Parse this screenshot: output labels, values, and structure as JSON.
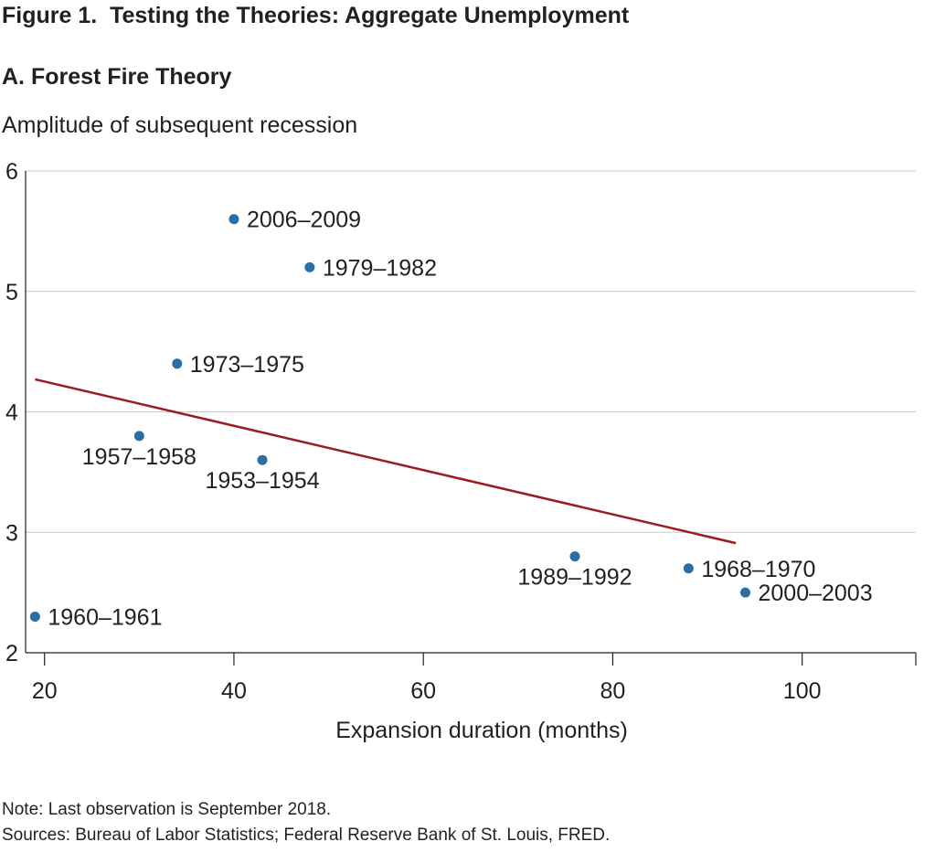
{
  "figure_title": "Figure 1.  Testing the Theories: Aggregate Unemployment",
  "panel_title": "A. Forest Fire Theory",
  "note": "Note: Last observation is September 2018.",
  "sources": "Sources: Bureau of Labor Statistics; Federal Reserve Bank of St. Louis, FRED.",
  "colors": {
    "point": "#2a6ea6",
    "trend": "#9b1c1f",
    "grid": "#c8c8c8",
    "axis": "#231f20"
  },
  "chart_data": {
    "type": "scatter",
    "title": "A. Forest Fire Theory",
    "xlabel": "Expansion duration (months)",
    "ylabel": "Amplitude of subsequent recession",
    "xlim": [
      18,
      112
    ],
    "ylim": [
      2,
      6
    ],
    "x_ticks": [
      20,
      40,
      60,
      80,
      100
    ],
    "y_ticks": [
      2,
      3,
      4,
      5,
      6
    ],
    "grid": "horizontal",
    "points": [
      {
        "label": "2006–2009",
        "x": 40,
        "y": 5.6,
        "label_side": "right"
      },
      {
        "label": "1979–1982",
        "x": 48,
        "y": 5.2,
        "label_side": "right"
      },
      {
        "label": "1973–1975",
        "x": 34,
        "y": 4.4,
        "label_side": "right"
      },
      {
        "label": "1957–1958",
        "x": 30,
        "y": 3.8,
        "label_side": "below"
      },
      {
        "label": "1953–1954",
        "x": 43,
        "y": 3.6,
        "label_side": "below"
      },
      {
        "label": "1989–1992",
        "x": 76,
        "y": 2.8,
        "label_side": "below"
      },
      {
        "label": "1968–1970",
        "x": 88,
        "y": 2.7,
        "label_side": "right"
      },
      {
        "label": "2000–2003",
        "x": 94,
        "y": 2.5,
        "label_side": "right"
      },
      {
        "label": "1960–1961",
        "x": 19,
        "y": 2.3,
        "label_side": "right"
      }
    ],
    "trend_line": {
      "x": [
        19,
        93
      ],
      "y": [
        4.27,
        2.91
      ]
    }
  }
}
